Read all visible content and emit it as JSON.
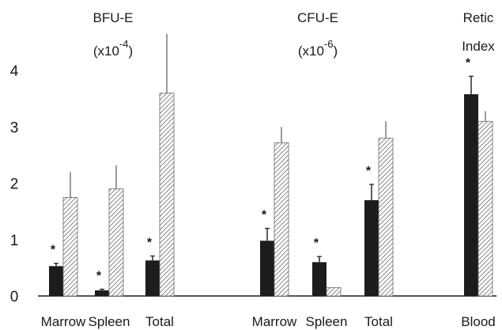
{
  "chart_data": {
    "type": "bar",
    "ylim": [
      0,
      4
    ],
    "yticks": [
      "0",
      "1",
      "2",
      "3",
      "4"
    ],
    "grid": false,
    "series": [
      {
        "name": "",
        "fill": "solid",
        "color": "#1c1c1c"
      },
      {
        "name": "",
        "fill": "hatched",
        "color": "#6a6a6a"
      }
    ],
    "groups": [
      {
        "title": "BFU-E",
        "scale_base": "(x10",
        "scale_exp": "-4",
        "scale_close": ")",
        "categories": [
          {
            "label": "Marrow",
            "solid": 0.53,
            "solid_err": 0.05,
            "hatched": 1.75,
            "hatched_err": 0.45,
            "star": "*"
          },
          {
            "label": "Spleen",
            "solid": 0.1,
            "solid_err": 0.02,
            "hatched": 1.9,
            "hatched_err": 0.42,
            "star": "*"
          },
          {
            "label": "Total",
            "solid": 0.63,
            "solid_err": 0.08,
            "hatched": 3.6,
            "hatched_err": 1.05,
            "star": "*"
          }
        ]
      },
      {
        "title": "CFU-E",
        "scale_base": "(x10",
        "scale_exp": "-6",
        "scale_close": ")",
        "categories": [
          {
            "label": "Marrow",
            "solid": 0.98,
            "solid_err": 0.22,
            "hatched": 2.72,
            "hatched_err": 0.28,
            "star": "*"
          },
          {
            "label": "Spleen",
            "solid": 0.6,
            "solid_err": 0.1,
            "hatched": 0.15,
            "hatched_err": 0.0,
            "star": "*"
          },
          {
            "label": "Total",
            "solid": 1.7,
            "solid_err": 0.28,
            "hatched": 2.8,
            "hatched_err": 0.3,
            "star": "*"
          }
        ]
      },
      {
        "title": "Retic",
        "title2": "Index",
        "categories": [
          {
            "label": "Blood",
            "solid": 3.58,
            "solid_err": 0.32,
            "hatched": 3.1,
            "hatched_err": 0.18,
            "star": "*"
          }
        ]
      }
    ]
  }
}
